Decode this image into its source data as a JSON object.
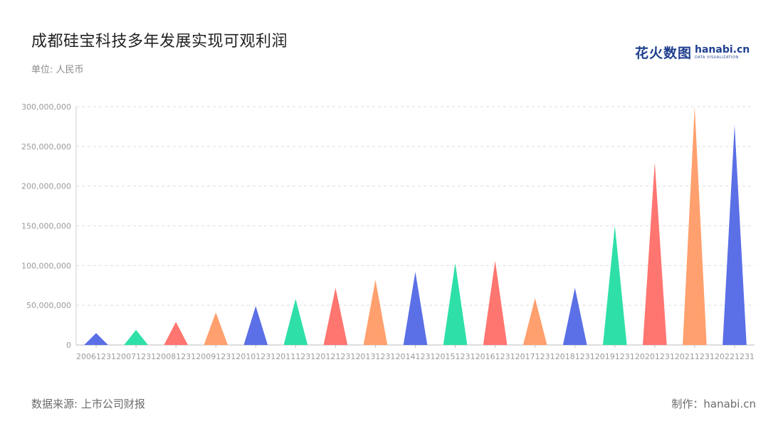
{
  "header": {
    "title": "成都硅宝科技多年发展实现可观利润",
    "unit": "单位: 人民币"
  },
  "logo": {
    "cn": "花火数图",
    "en": "hanabi.cn",
    "sub": "DATA VISUALIZATION"
  },
  "footer": {
    "source": "数据来源: 上市公司财报",
    "credit": "制作：hanabi.cn"
  },
  "colors": {
    "palette": [
      "#5b6fe6",
      "#2ee0a8",
      "#ff7570",
      "#ffa06e"
    ]
  },
  "chart_data": {
    "type": "bar",
    "bar_shape": "triangle",
    "categories": [
      "20061231",
      "20071231",
      "20081231",
      "20091231",
      "20101231",
      "20111231",
      "20121231",
      "20131231",
      "20141231",
      "20151231",
      "20161231",
      "20171231",
      "20181231",
      "20191231",
      "20201231",
      "20211231",
      "20221231"
    ],
    "values": [
      15000000,
      19000000,
      29000000,
      41000000,
      49000000,
      58000000,
      72000000,
      82000000,
      92000000,
      103000000,
      106000000,
      59000000,
      72000000,
      150000000,
      230000000,
      300000000,
      277000000
    ],
    "y_ticks": [
      "0",
      "50,000,000",
      "100,000,000",
      "150,000,000",
      "200,000,000",
      "250,000,000",
      "300,000,000"
    ],
    "ylim": [
      0,
      300000000
    ],
    "grid": true,
    "legend": "none"
  }
}
